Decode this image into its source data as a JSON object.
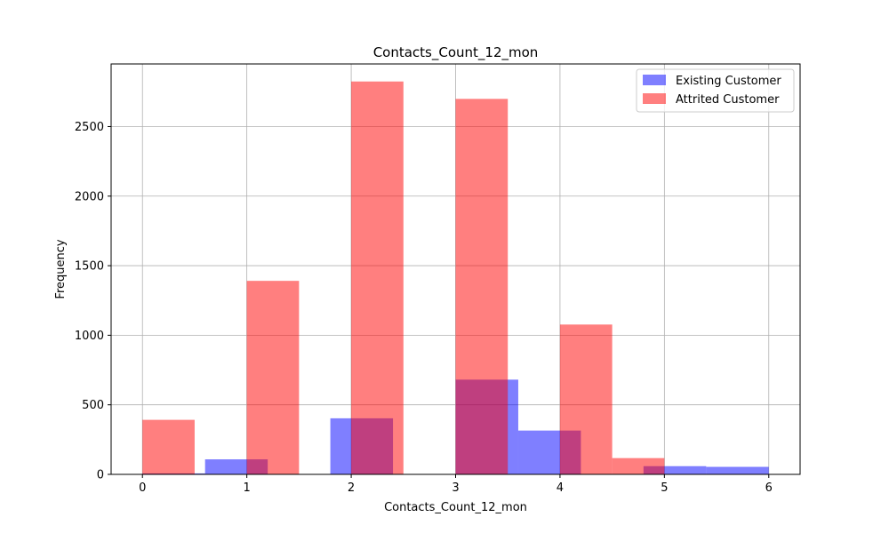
{
  "chart_data": {
    "type": "bar",
    "title": "Contacts_Count_12_mon",
    "xlabel": "Contacts_Count_12_mon",
    "ylabel": "Frequency",
    "xlim": [
      -0.3,
      6.3
    ],
    "ylim": [
      0,
      2950
    ],
    "xticks": [
      0,
      1,
      2,
      3,
      4,
      5,
      6
    ],
    "yticks": [
      0,
      500,
      1000,
      1500,
      2000,
      2500
    ],
    "grid": true,
    "legend_position": "top-right",
    "series": [
      {
        "name": "Existing Customer",
        "color": "#0000ff",
        "opacity": 0.5,
        "bins": [
          {
            "x0": 0.0,
            "x1": 0.6,
            "value": 7
          },
          {
            "x0": 0.6,
            "x1": 1.2,
            "value": 108
          },
          {
            "x0": 1.8,
            "x1": 2.4,
            "value": 403
          },
          {
            "x0": 3.0,
            "x1": 3.6,
            "value": 681
          },
          {
            "x0": 3.6,
            "x1": 4.2,
            "value": 315
          },
          {
            "x0": 4.8,
            "x1": 5.4,
            "value": 59
          },
          {
            "x0": 5.4,
            "x1": 6.0,
            "value": 54
          }
        ]
      },
      {
        "name": "Attrited Customer",
        "color": "#ff0000",
        "opacity": 0.5,
        "bins": [
          {
            "x0": 0.0,
            "x1": 0.5,
            "value": 392
          },
          {
            "x0": 1.0,
            "x1": 1.5,
            "value": 1391
          },
          {
            "x0": 2.0,
            "x1": 2.5,
            "value": 2824
          },
          {
            "x0": 3.0,
            "x1": 3.5,
            "value": 2699
          },
          {
            "x0": 4.0,
            "x1": 4.5,
            "value": 1077
          },
          {
            "x0": 4.5,
            "x1": 5.0,
            "value": 117
          }
        ]
      }
    ]
  }
}
